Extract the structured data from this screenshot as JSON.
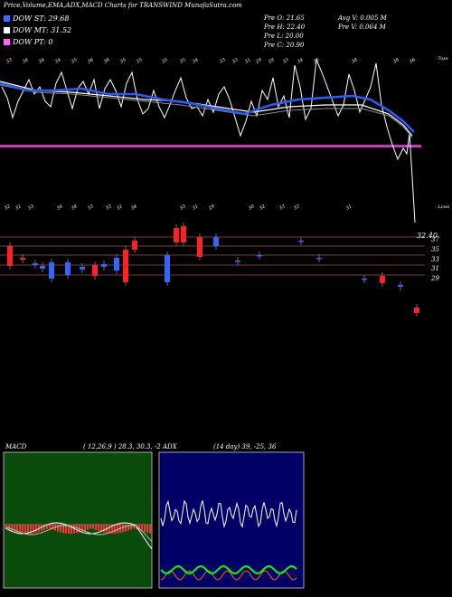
{
  "header": {
    "title": "Price,Volume,EMA,ADX,MACD Charts for TRANSWIND MunafaSutra.com"
  },
  "dow": [
    {
      "label": "DOW ST: 29.68",
      "color": "#3a6cff"
    },
    {
      "label": "DOW MT: 31.52",
      "color": "#ffffff"
    },
    {
      "label": "DOW PT: 0",
      "color": "#ff66ff"
    }
  ],
  "ohlc": {
    "open": "Pre  O: 21.65",
    "high": "Pre  H: 22.40",
    "low": "Pre  L: 20.00",
    "close": "Pre  C: 20.90"
  },
  "volume": {
    "avg": "Avg V: 0.005 M",
    "pre": "Pre  V: 0.064  M"
  },
  "top_labels": [
    "33",
    "34",
    "34",
    "34",
    "35",
    "36",
    "36",
    "35",
    "35",
    "35",
    "35",
    "34",
    "33",
    "33",
    "31",
    "29",
    "29",
    "33",
    "34",
    "35",
    "38",
    "38",
    "36"
  ],
  "bottom_labels": [
    "32",
    "32",
    "33",
    "34",
    "34",
    "33",
    "33",
    "32",
    "34",
    "33",
    "31",
    "29",
    "30",
    "32",
    "33",
    "33",
    "31"
  ],
  "top_corner": "- Tops",
  "bottom_corner": "- Lows",
  "price_axis": {
    "last": "32.40",
    "ticks": [
      "37",
      "35",
      "33",
      "31",
      "29"
    ]
  },
  "macd": {
    "label": "MACD",
    "params": "( 12,26,9 ) 28.3,  30.3,  -2"
  },
  "adx": {
    "label": "ADX",
    "params": "(14  day) 39,  -25,  36"
  },
  "colors": {
    "ema_short": "#2a5cff",
    "ema_mid": "#ffffff",
    "dow_pt": "#cc33cc",
    "bull": "#3366ff",
    "bear": "#ff2222",
    "macd_bg": "#0a4a0a",
    "adx_bg": "#000066"
  }
}
